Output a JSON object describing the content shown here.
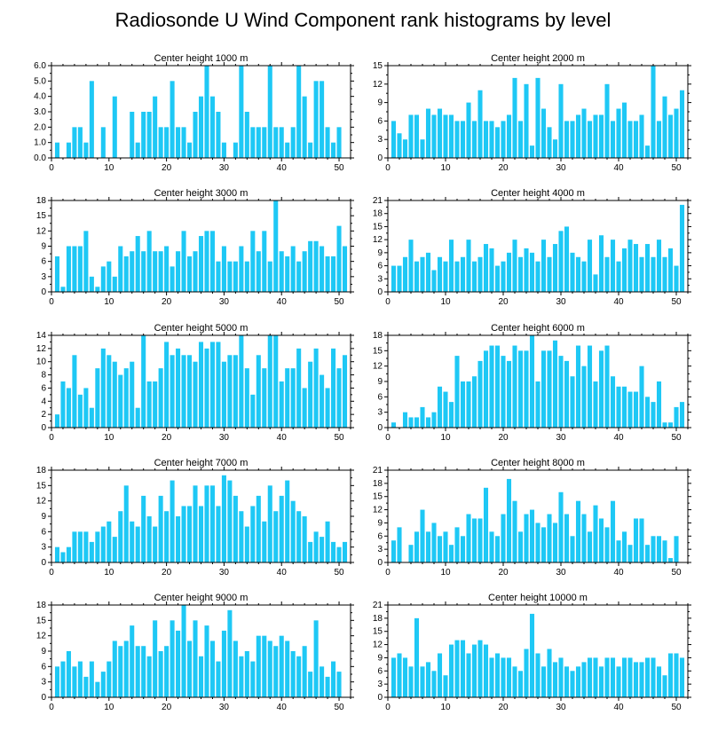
{
  "page": {
    "title": "Radiosonde U Wind Component rank histograms by level"
  },
  "chart_data": [
    {
      "type": "bar",
      "title": "Center height 1000 m",
      "xlim": [
        0,
        52
      ],
      "xticks": [
        0,
        10,
        20,
        30,
        40,
        50
      ],
      "ylim": [
        0,
        6.0
      ],
      "yticks": [
        "0.0",
        "1.0",
        "2.0",
        "3.0",
        "4.0",
        "5.0",
        "6.0"
      ],
      "x": [
        1,
        2,
        3,
        4,
        5,
        6,
        7,
        8,
        9,
        10,
        11,
        12,
        13,
        14,
        15,
        16,
        17,
        18,
        19,
        20,
        21,
        22,
        23,
        24,
        25,
        26,
        27,
        28,
        29,
        30,
        31,
        32,
        33,
        34,
        35,
        36,
        37,
        38,
        39,
        40,
        41,
        42,
        43,
        44,
        45,
        46,
        47,
        48,
        49,
        50,
        51
      ],
      "values": [
        1,
        0,
        1,
        2,
        2,
        1,
        5,
        0,
        2,
        0,
        4,
        0,
        0,
        3,
        1,
        3,
        3,
        4,
        2,
        2,
        5,
        2,
        2,
        1,
        3,
        4,
        6,
        4,
        3,
        1,
        0,
        1,
        6,
        3,
        2,
        2,
        2,
        6,
        2,
        2,
        1,
        2,
        6,
        4,
        1,
        5,
        5,
        2,
        1,
        2,
        0
      ]
    },
    {
      "type": "bar",
      "title": "Center height 2000 m",
      "xlim": [
        0,
        52
      ],
      "xticks": [
        0,
        10,
        20,
        30,
        40,
        50
      ],
      "ylim": [
        0,
        15
      ],
      "yticks": [
        "0",
        "3",
        "6",
        "9",
        "12",
        "15"
      ],
      "x": [
        1,
        2,
        3,
        4,
        5,
        6,
        7,
        8,
        9,
        10,
        11,
        12,
        13,
        14,
        15,
        16,
        17,
        18,
        19,
        20,
        21,
        22,
        23,
        24,
        25,
        26,
        27,
        28,
        29,
        30,
        31,
        32,
        33,
        34,
        35,
        36,
        37,
        38,
        39,
        40,
        41,
        42,
        43,
        44,
        45,
        46,
        47,
        48,
        49,
        50,
        51
      ],
      "values": [
        6,
        4,
        3,
        7,
        7,
        3,
        8,
        7,
        8,
        7,
        7,
        6,
        6,
        9,
        6,
        11,
        6,
        6,
        5,
        6,
        7,
        13,
        6,
        12,
        2,
        13,
        8,
        5,
        3,
        12,
        6,
        6,
        7,
        8,
        6,
        7,
        7,
        12,
        6,
        8,
        9,
        6,
        6,
        7,
        2,
        15,
        6,
        10,
        7,
        8,
        11
      ]
    },
    {
      "type": "bar",
      "title": "Center height 3000 m",
      "xlim": [
        0,
        52
      ],
      "xticks": [
        0,
        10,
        20,
        30,
        40,
        50
      ],
      "ylim": [
        0,
        18
      ],
      "yticks": [
        "0",
        "3",
        "6",
        "9",
        "12",
        "15",
        "18"
      ],
      "x": [
        1,
        2,
        3,
        4,
        5,
        6,
        7,
        8,
        9,
        10,
        11,
        12,
        13,
        14,
        15,
        16,
        17,
        18,
        19,
        20,
        21,
        22,
        23,
        24,
        25,
        26,
        27,
        28,
        29,
        30,
        31,
        32,
        33,
        34,
        35,
        36,
        37,
        38,
        39,
        40,
        41,
        42,
        43,
        44,
        45,
        46,
        47,
        48,
        49,
        50,
        51
      ],
      "values": [
        7,
        1,
        9,
        9,
        9,
        12,
        3,
        1,
        5,
        6,
        3,
        9,
        7,
        8,
        11,
        8,
        12,
        8,
        8,
        9,
        5,
        8,
        12,
        7,
        8,
        11,
        12,
        12,
        6,
        9,
        6,
        6,
        9,
        6,
        12,
        8,
        12,
        6,
        18,
        8,
        7,
        9,
        6,
        8,
        10,
        10,
        9,
        7,
        7,
        13,
        9
      ]
    },
    {
      "type": "bar",
      "title": "Center height 4000 m",
      "xlim": [
        0,
        52
      ],
      "xticks": [
        0,
        10,
        20,
        30,
        40,
        50
      ],
      "ylim": [
        0,
        21
      ],
      "yticks": [
        "0",
        "3",
        "6",
        "9",
        "12",
        "15",
        "18",
        "21"
      ],
      "x": [
        1,
        2,
        3,
        4,
        5,
        6,
        7,
        8,
        9,
        10,
        11,
        12,
        13,
        14,
        15,
        16,
        17,
        18,
        19,
        20,
        21,
        22,
        23,
        24,
        25,
        26,
        27,
        28,
        29,
        30,
        31,
        32,
        33,
        34,
        35,
        36,
        37,
        38,
        39,
        40,
        41,
        42,
        43,
        44,
        45,
        46,
        47,
        48,
        49,
        50,
        51
      ],
      "values": [
        6,
        6,
        8,
        12,
        7,
        8,
        9,
        5,
        8,
        7,
        12,
        7,
        8,
        12,
        7,
        8,
        11,
        10,
        6,
        7,
        9,
        12,
        8,
        10,
        9,
        7,
        12,
        8,
        11,
        14,
        15,
        9,
        8,
        7,
        12,
        4,
        13,
        8,
        12,
        7,
        10,
        12,
        11,
        8,
        11,
        8,
        12,
        8,
        10,
        6,
        20
      ]
    },
    {
      "type": "bar",
      "title": "Center height 5000 m",
      "xlim": [
        0,
        52
      ],
      "xticks": [
        0,
        10,
        20,
        30,
        40,
        50
      ],
      "ylim": [
        0,
        14
      ],
      "yticks": [
        "0",
        "2",
        "4",
        "6",
        "8",
        "10",
        "12",
        "14"
      ],
      "x": [
        1,
        2,
        3,
        4,
        5,
        6,
        7,
        8,
        9,
        10,
        11,
        12,
        13,
        14,
        15,
        16,
        17,
        18,
        19,
        20,
        21,
        22,
        23,
        24,
        25,
        26,
        27,
        28,
        29,
        30,
        31,
        32,
        33,
        34,
        35,
        36,
        37,
        38,
        39,
        40,
        41,
        42,
        43,
        44,
        45,
        46,
        47,
        48,
        49,
        50,
        51
      ],
      "values": [
        2,
        7,
        6,
        11,
        5,
        6,
        3,
        9,
        12,
        11,
        10,
        8,
        9,
        10,
        3,
        14,
        7,
        7,
        9,
        13,
        11,
        12,
        11,
        11,
        10,
        13,
        12,
        13,
        13,
        10,
        11,
        11,
        14,
        9,
        5,
        11,
        9,
        14,
        14,
        7,
        9,
        9,
        12,
        6,
        10,
        12,
        8,
        6,
        12,
        9,
        11
      ]
    },
    {
      "type": "bar",
      "title": "Center height 6000 m",
      "xlim": [
        0,
        52
      ],
      "xticks": [
        0,
        10,
        20,
        30,
        40,
        50
      ],
      "ylim": [
        0,
        18
      ],
      "yticks": [
        "0",
        "3",
        "6",
        "9",
        "12",
        "15",
        "18"
      ],
      "x": [
        1,
        2,
        3,
        4,
        5,
        6,
        7,
        8,
        9,
        10,
        11,
        12,
        13,
        14,
        15,
        16,
        17,
        18,
        19,
        20,
        21,
        22,
        23,
        24,
        25,
        26,
        27,
        28,
        29,
        30,
        31,
        32,
        33,
        34,
        35,
        36,
        37,
        38,
        39,
        40,
        41,
        42,
        43,
        44,
        45,
        46,
        47,
        48,
        49,
        50,
        51
      ],
      "values": [
        1,
        0,
        3,
        2,
        2,
        4,
        2,
        3,
        8,
        7,
        5,
        14,
        9,
        9,
        10,
        13,
        15,
        16,
        16,
        14,
        13,
        16,
        15,
        15,
        18,
        9,
        15,
        15,
        17,
        14,
        13,
        10,
        16,
        12,
        16,
        9,
        15,
        16,
        10,
        8,
        8,
        7,
        7,
        12,
        6,
        5,
        9,
        1,
        1,
        4,
        5
      ]
    },
    {
      "type": "bar",
      "title": "Center height 7000 m",
      "xlim": [
        0,
        52
      ],
      "xticks": [
        0,
        10,
        20,
        30,
        40,
        50
      ],
      "ylim": [
        0,
        18
      ],
      "yticks": [
        "0",
        "3",
        "6",
        "9",
        "12",
        "15",
        "18"
      ],
      "x": [
        1,
        2,
        3,
        4,
        5,
        6,
        7,
        8,
        9,
        10,
        11,
        12,
        13,
        14,
        15,
        16,
        17,
        18,
        19,
        20,
        21,
        22,
        23,
        24,
        25,
        26,
        27,
        28,
        29,
        30,
        31,
        32,
        33,
        34,
        35,
        36,
        37,
        38,
        39,
        40,
        41,
        42,
        43,
        44,
        45,
        46,
        47,
        48,
        49,
        50,
        51
      ],
      "values": [
        3,
        2,
        3,
        6,
        6,
        6,
        4,
        6,
        7,
        8,
        5,
        10,
        15,
        8,
        7,
        13,
        9,
        7,
        13,
        10,
        16,
        9,
        11,
        11,
        15,
        11,
        15,
        15,
        11,
        17,
        16,
        13,
        10,
        7,
        11,
        13,
        8,
        15,
        10,
        13,
        16,
        12,
        10,
        9,
        4,
        6,
        5,
        8,
        4,
        3,
        4
      ]
    },
    {
      "type": "bar",
      "title": "Center height 8000 m",
      "xlim": [
        0,
        52
      ],
      "xticks": [
        0,
        10,
        20,
        30,
        40,
        50
      ],
      "ylim": [
        0,
        21
      ],
      "yticks": [
        "0",
        "3",
        "6",
        "9",
        "12",
        "15",
        "18",
        "21"
      ],
      "x": [
        1,
        2,
        3,
        4,
        5,
        6,
        7,
        8,
        9,
        10,
        11,
        12,
        13,
        14,
        15,
        16,
        17,
        18,
        19,
        20,
        21,
        22,
        23,
        24,
        25,
        26,
        27,
        28,
        29,
        30,
        31,
        32,
        33,
        34,
        35,
        36,
        37,
        38,
        39,
        40,
        41,
        42,
        43,
        44,
        45,
        46,
        47,
        48,
        49,
        50,
        51
      ],
      "values": [
        5,
        8,
        0,
        4,
        7,
        12,
        7,
        9,
        6,
        7,
        4,
        8,
        6,
        11,
        10,
        10,
        17,
        7,
        6,
        11,
        19,
        14,
        7,
        11,
        12,
        9,
        8,
        11,
        9,
        16,
        11,
        6,
        14,
        11,
        7,
        13,
        10,
        8,
        14,
        5,
        7,
        4,
        10,
        10,
        4,
        6,
        6,
        5,
        1,
        6,
        0
      ]
    },
    {
      "type": "bar",
      "title": "Center height 9000 m",
      "xlim": [
        0,
        52
      ],
      "xticks": [
        0,
        10,
        20,
        30,
        40,
        50
      ],
      "ylim": [
        0,
        18
      ],
      "yticks": [
        "0",
        "3",
        "6",
        "9",
        "12",
        "15",
        "18"
      ],
      "x": [
        1,
        2,
        3,
        4,
        5,
        6,
        7,
        8,
        9,
        10,
        11,
        12,
        13,
        14,
        15,
        16,
        17,
        18,
        19,
        20,
        21,
        22,
        23,
        24,
        25,
        26,
        27,
        28,
        29,
        30,
        31,
        32,
        33,
        34,
        35,
        36,
        37,
        38,
        39,
        40,
        41,
        42,
        43,
        44,
        45,
        46,
        47,
        48,
        49,
        50,
        51
      ],
      "values": [
        6,
        7,
        9,
        6,
        7,
        4,
        7,
        3,
        5,
        7,
        11,
        10,
        11,
        14,
        10,
        10,
        8,
        15,
        9,
        10,
        15,
        13,
        18,
        11,
        15,
        8,
        14,
        11,
        7,
        13,
        17,
        11,
        8,
        9,
        7,
        12,
        12,
        11,
        10,
        12,
        11,
        9,
        8,
        10,
        5,
        15,
        6,
        4,
        7,
        5,
        0
      ]
    },
    {
      "type": "bar",
      "title": "Center height 10000 m",
      "xlim": [
        0,
        52
      ],
      "xticks": [
        0,
        10,
        20,
        30,
        40,
        50
      ],
      "ylim": [
        0,
        21
      ],
      "yticks": [
        "0",
        "3",
        "6",
        "9",
        "12",
        "15",
        "18",
        "21"
      ],
      "x": [
        1,
        2,
        3,
        4,
        5,
        6,
        7,
        8,
        9,
        10,
        11,
        12,
        13,
        14,
        15,
        16,
        17,
        18,
        19,
        20,
        21,
        22,
        23,
        24,
        25,
        26,
        27,
        28,
        29,
        30,
        31,
        32,
        33,
        34,
        35,
        36,
        37,
        38,
        39,
        40,
        41,
        42,
        43,
        44,
        45,
        46,
        47,
        48,
        49,
        50,
        51
      ],
      "values": [
        9,
        10,
        9,
        7,
        18,
        7,
        8,
        6,
        10,
        5,
        12,
        13,
        13,
        10,
        12,
        13,
        12,
        9,
        10,
        9,
        9,
        7,
        6,
        11,
        19,
        10,
        7,
        11,
        8,
        9,
        7,
        6,
        7,
        8,
        9,
        9,
        7,
        9,
        9,
        7,
        9,
        9,
        8,
        8,
        9,
        9,
        7,
        5,
        10,
        10,
        9
      ]
    }
  ]
}
